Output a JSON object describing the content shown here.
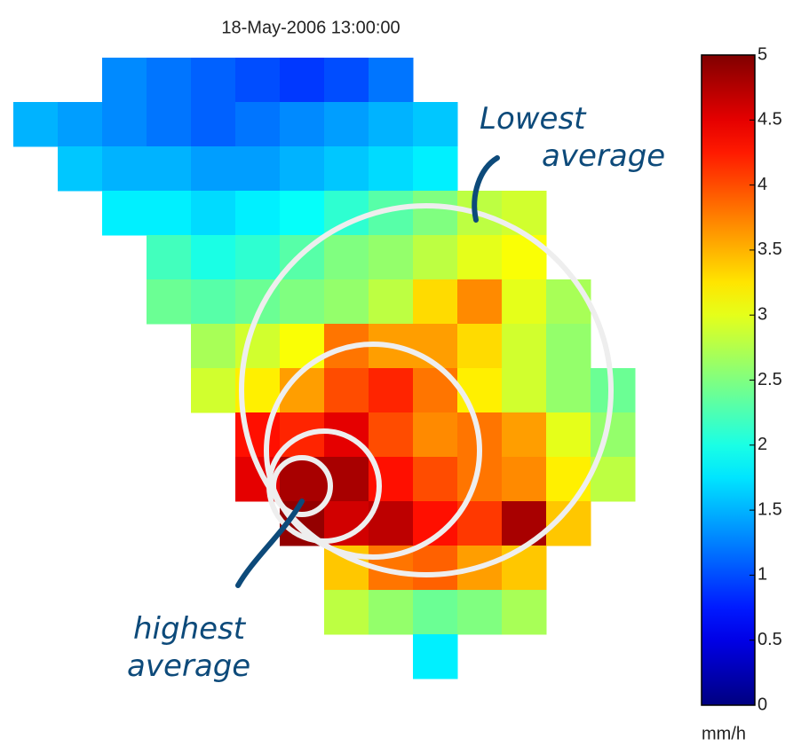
{
  "chart_data": {
    "type": "heatmap",
    "title": "18-May-2006 13:00:00",
    "colormap": "jet",
    "clim": [
      0,
      5
    ],
    "cticks": [
      0,
      0.5,
      1,
      1.5,
      2,
      2.5,
      3,
      3.5,
      4,
      4.5,
      5
    ],
    "colorbar_label": "mm/h",
    "annotations": [
      "Lowest average",
      "highest average"
    ],
    "z": [
      [
        null,
        null,
        1.3,
        1.2,
        1.1,
        1.0,
        0.9,
        1.0,
        1.2,
        null,
        null,
        null,
        null,
        null
      ],
      [
        1.5,
        1.4,
        1.3,
        1.2,
        1.1,
        1.2,
        1.3,
        1.4,
        1.5,
        1.6,
        null,
        null,
        null,
        null
      ],
      [
        null,
        1.6,
        1.5,
        1.5,
        1.4,
        1.4,
        1.5,
        1.6,
        1.7,
        1.8,
        null,
        null,
        null,
        null
      ],
      [
        null,
        null,
        1.8,
        1.8,
        1.7,
        1.8,
        1.9,
        2.1,
        2.3,
        2.5,
        2.8,
        2.9,
        null,
        null
      ],
      [
        null,
        null,
        null,
        2.2,
        2.0,
        2.1,
        2.3,
        2.5,
        2.6,
        2.8,
        3.0,
        3.1,
        null,
        null
      ],
      [
        null,
        null,
        null,
        2.4,
        2.3,
        2.4,
        2.5,
        2.6,
        2.8,
        3.3,
        3.7,
        3.0,
        2.7,
        null
      ],
      [
        null,
        null,
        null,
        null,
        2.7,
        2.9,
        3.1,
        3.8,
        3.6,
        3.6,
        3.3,
        2.9,
        2.6,
        null
      ],
      [
        null,
        null,
        null,
        null,
        2.9,
        3.2,
        3.6,
        4.0,
        4.2,
        3.8,
        3.2,
        2.9,
        2.6,
        2.4
      ],
      [
        null,
        null,
        null,
        null,
        null,
        4.3,
        4.2,
        4.5,
        4.0,
        3.7,
        3.8,
        3.6,
        3.0,
        2.6
      ],
      [
        null,
        null,
        null,
        null,
        null,
        4.5,
        4.8,
        4.8,
        4.3,
        4.0,
        3.8,
        3.7,
        3.2,
        2.8
      ],
      [
        null,
        null,
        null,
        null,
        null,
        null,
        4.9,
        4.6,
        4.7,
        4.3,
        4.1,
        4.8,
        3.4,
        null
      ],
      [
        null,
        null,
        null,
        null,
        null,
        null,
        null,
        3.4,
        3.8,
        3.9,
        3.6,
        3.4,
        null,
        null
      ],
      [
        null,
        null,
        null,
        null,
        null,
        null,
        null,
        2.8,
        2.6,
        2.4,
        2.5,
        2.7,
        null,
        null
      ],
      [
        null,
        null,
        null,
        null,
        null,
        null,
        null,
        null,
        null,
        1.8,
        null,
        null,
        null,
        null
      ]
    ]
  }
}
